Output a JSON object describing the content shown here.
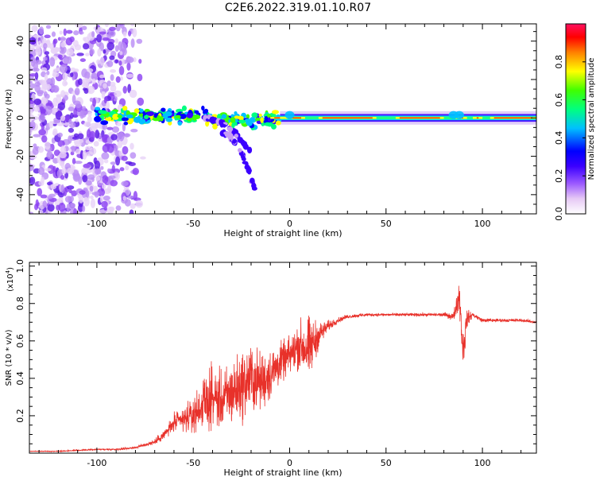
{
  "title": "C2E6.2022.319.01.10.R07",
  "colors": {
    "axis": "#000000",
    "snr_line": "#e8312a",
    "spectrogram_points": "#7b2be8",
    "colormap": [
      "#ffffff",
      "#e6c9f5",
      "#9b59ff",
      "#3b00ff",
      "#0000ff",
      "#00c0ff",
      "#00ff80",
      "#40ff00",
      "#ffff00",
      "#ff8000",
      "#ff0000",
      "#ff1060"
    ]
  },
  "chart_data": [
    {
      "type": "heatmap",
      "name": "spectrogram",
      "xlabel": "Height of straight line (km)",
      "ylabel": "Frequency (Hz)",
      "xlim": [
        -135,
        128
      ],
      "ylim": [
        -50,
        49
      ],
      "xticks": [
        -100,
        -50,
        0,
        50,
        100
      ],
      "yticks": [
        -40,
        -20,
        0,
        20,
        40
      ],
      "xtick_labels": [
        "-100",
        "-50",
        "0",
        "50",
        "100"
      ],
      "ytick_labels": [
        "-40",
        "-20",
        "0",
        "20",
        "40"
      ],
      "colorbar": {
        "label": "Normalized spectral amplitude",
        "range": [
          0,
          1
        ],
        "ticks": [
          0.0,
          0.2,
          0.4,
          0.6,
          0.8
        ],
        "tick_labels": [
          "0.0",
          "0.2",
          "0.4",
          "0.6",
          "0.8"
        ]
      },
      "features": [
        {
          "kind": "scatter_noise",
          "x": [
            -135,
            -75
          ],
          "y": [
            -50,
            49
          ],
          "amplitude": 0.08
        },
        {
          "kind": "carrier",
          "x": [
            -100,
            128
          ],
          "y": 0,
          "amplitude": 0.55
        },
        {
          "kind": "branch",
          "x": [
            -45,
            -20
          ],
          "y": [
            0,
            -18
          ],
          "amplitude": 0.15
        },
        {
          "kind": "branch",
          "x": [
            -35,
            -18
          ],
          "y": [
            -8,
            -38
          ],
          "amplitude": 0.1
        },
        {
          "kind": "bright_segments",
          "x": [
            -5,
            128
          ],
          "y": 0,
          "amplitude": 0.95
        }
      ]
    },
    {
      "type": "line",
      "name": "snr",
      "xlabel": "Height of straight line (km)",
      "ylabel": "SNR (10 * v/v)",
      "yscale_label": "(x10",
      "yscale_exp": "4",
      "yscale_close": ")",
      "xlim": [
        -135,
        128
      ],
      "ylim": [
        0,
        1.02
      ],
      "xticks": [
        -100,
        -50,
        0,
        50,
        100
      ],
      "yticks": [
        0.2,
        0.4,
        0.6,
        0.8,
        1.0
      ],
      "xtick_labels": [
        "-100",
        "-50",
        "0",
        "50",
        "100"
      ],
      "ytick_labels": [
        "0.2",
        "0.4",
        "0.6",
        "0.8",
        "1.0"
      ],
      "x": [
        -135,
        -120,
        -100,
        -90,
        -80,
        -70,
        -65,
        -60,
        -55,
        -50,
        -45,
        -40,
        -35,
        -30,
        -25,
        -20,
        -15,
        -10,
        -5,
        0,
        5,
        10,
        15,
        20,
        25,
        30,
        40,
        50,
        60,
        70,
        80,
        85,
        88,
        90,
        92,
        95,
        100,
        110,
        120,
        128
      ],
      "values": [
        0.01,
        0.01,
        0.02,
        0.02,
        0.03,
        0.06,
        0.1,
        0.16,
        0.18,
        0.2,
        0.26,
        0.3,
        0.28,
        0.32,
        0.36,
        0.4,
        0.38,
        0.42,
        0.48,
        0.52,
        0.58,
        0.55,
        0.63,
        0.68,
        0.71,
        0.73,
        0.74,
        0.74,
        0.74,
        0.74,
        0.74,
        0.73,
        0.85,
        0.55,
        0.72,
        0.74,
        0.71,
        0.71,
        0.71,
        0.7
      ],
      "noise_amplitude": [
        0.002,
        0.004,
        0.005,
        0.006,
        0.01,
        0.02,
        0.04,
        0.07,
        0.1,
        0.12,
        0.18,
        0.22,
        0.22,
        0.25,
        0.26,
        0.26,
        0.22,
        0.2,
        0.15,
        0.14,
        0.18,
        0.25,
        0.1,
        0.04,
        0.02,
        0.015,
        0.012,
        0.012,
        0.012,
        0.012,
        0.015,
        0.03,
        0.12,
        0.2,
        0.06,
        0.02,
        0.015,
        0.012,
        0.012,
        0.012
      ]
    }
  ]
}
